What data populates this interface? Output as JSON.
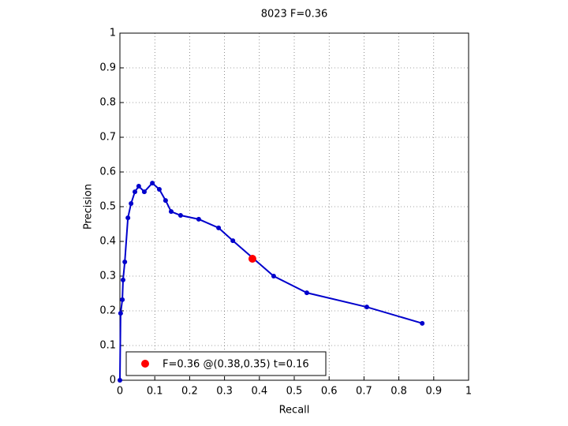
{
  "chart_data": {
    "type": "line",
    "title": "8023 F=0.36",
    "x_label": "Recall",
    "y_label": "Precision",
    "xlim": [
      0,
      1
    ],
    "ylim": [
      0,
      1
    ],
    "xticks": [
      0,
      0.1,
      0.2,
      0.3,
      0.4,
      0.5,
      0.6,
      0.7,
      0.8,
      0.9,
      1
    ],
    "yticks": [
      0,
      0.1,
      0.2,
      0.3,
      0.4,
      0.5,
      0.6,
      0.7,
      0.8,
      0.9,
      1
    ],
    "grid": true,
    "legend": "lower left",
    "series": [
      {
        "color": "#0000cc",
        "x": [
          0,
          0.002,
          0.007,
          0.009,
          0.014,
          0.023,
          0.032,
          0.043,
          0.054,
          0.07,
          0.093,
          0.113,
          0.131,
          0.147,
          0.174,
          0.226,
          0.283,
          0.324,
          0.441,
          0.536,
          0.708,
          0.867
        ],
        "values": [
          0,
          0.193,
          0.232,
          0.289,
          0.341,
          0.468,
          0.509,
          0.543,
          0.559,
          0.543,
          0.568,
          0.55,
          0.518,
          0.486,
          0.475,
          0.464,
          0.439,
          0.402,
          0.3,
          0.252,
          0.211,
          0.164
        ]
      },
      {
        "name": "F=0.36 @(0.38,0.35) t=0.16",
        "color": "#ff0000",
        "x": [
          0.38
        ],
        "values": [
          0.35
        ]
      }
    ]
  }
}
